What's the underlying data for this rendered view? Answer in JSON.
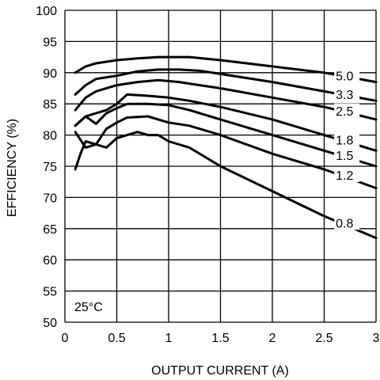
{
  "chart_data": {
    "type": "line",
    "title": "",
    "xlabel": "OUTPUT CURRENT (A)",
    "ylabel": "EFFICIENCY (%)",
    "xlim": [
      0,
      3
    ],
    "ylim": [
      50,
      100
    ],
    "x_ticks": [
      "0",
      "0.5",
      "1",
      "1.5",
      "2",
      "2.5",
      "3"
    ],
    "y_ticks": [
      "50",
      "55",
      "60",
      "65",
      "70",
      "75",
      "80",
      "85",
      "90",
      "95",
      "100"
    ],
    "grid": true,
    "annotation": "25°C",
    "series": [
      {
        "name": "5.0",
        "x": [
          0.1,
          0.2,
          0.3,
          0.5,
          0.7,
          0.9,
          1.0,
          1.2,
          1.5,
          2.0,
          2.5,
          3.0
        ],
        "y": [
          90.0,
          91.0,
          91.5,
          92.0,
          92.3,
          92.5,
          92.5,
          92.5,
          92.0,
          91.0,
          90.0,
          88.5
        ]
      },
      {
        "name": "3.3",
        "x": [
          0.1,
          0.2,
          0.3,
          0.5,
          0.7,
          0.9,
          1.1,
          1.3,
          1.5,
          2.0,
          2.5,
          3.0
        ],
        "y": [
          86.5,
          88.0,
          89.0,
          89.5,
          90.2,
          90.5,
          90.5,
          90.3,
          89.8,
          88.5,
          87.0,
          85.5
        ]
      },
      {
        "name": "2.5",
        "x": [
          0.1,
          0.2,
          0.3,
          0.5,
          0.7,
          0.9,
          1.1,
          1.3,
          1.5,
          2.0,
          2.5,
          3.0
        ],
        "y": [
          84.0,
          86.0,
          87.0,
          88.0,
          88.5,
          88.8,
          88.5,
          88.0,
          87.5,
          86.0,
          84.5,
          82.5
        ]
      },
      {
        "name": "1.8",
        "x": [
          0.1,
          0.2,
          0.3,
          0.4,
          0.5,
          0.6,
          0.8,
          1.0,
          1.2,
          1.5,
          2.0,
          2.5,
          3.0
        ],
        "y": [
          81.5,
          83.0,
          83.5,
          84.0,
          85.0,
          86.5,
          86.3,
          86.0,
          85.5,
          84.5,
          82.5,
          80.0,
          77.5
        ]
      },
      {
        "name": "1.5",
        "x": [
          0.1,
          0.2,
          0.3,
          0.4,
          0.5,
          0.6,
          0.8,
          1.0,
          1.2,
          1.5,
          2.0,
          2.5,
          3.0
        ],
        "y": [
          81.5,
          83.0,
          81.8,
          83.5,
          84.3,
          85.0,
          85.0,
          84.8,
          84.0,
          82.5,
          80.0,
          77.5,
          75.0
        ]
      },
      {
        "name": "1.2",
        "x": [
          0.1,
          0.2,
          0.3,
          0.4,
          0.5,
          0.6,
          0.8,
          1.0,
          1.2,
          1.5,
          2.0,
          2.5,
          3.0
        ],
        "y": [
          80.5,
          78.0,
          78.5,
          81.0,
          82.0,
          82.8,
          83.0,
          82.0,
          81.5,
          80.0,
          77.0,
          74.5,
          71.5
        ]
      },
      {
        "name": "0.8",
        "x": [
          0.1,
          0.15,
          0.2,
          0.3,
          0.4,
          0.5,
          0.6,
          0.7,
          0.8,
          0.9,
          1.0,
          1.2,
          1.5,
          2.0,
          2.5,
          3.0
        ],
        "y": [
          74.5,
          77.0,
          79.0,
          78.5,
          78.0,
          79.5,
          80.0,
          80.5,
          80.0,
          80.0,
          79.0,
          78.0,
          75.0,
          71.0,
          67.0,
          63.5
        ]
      }
    ]
  }
}
